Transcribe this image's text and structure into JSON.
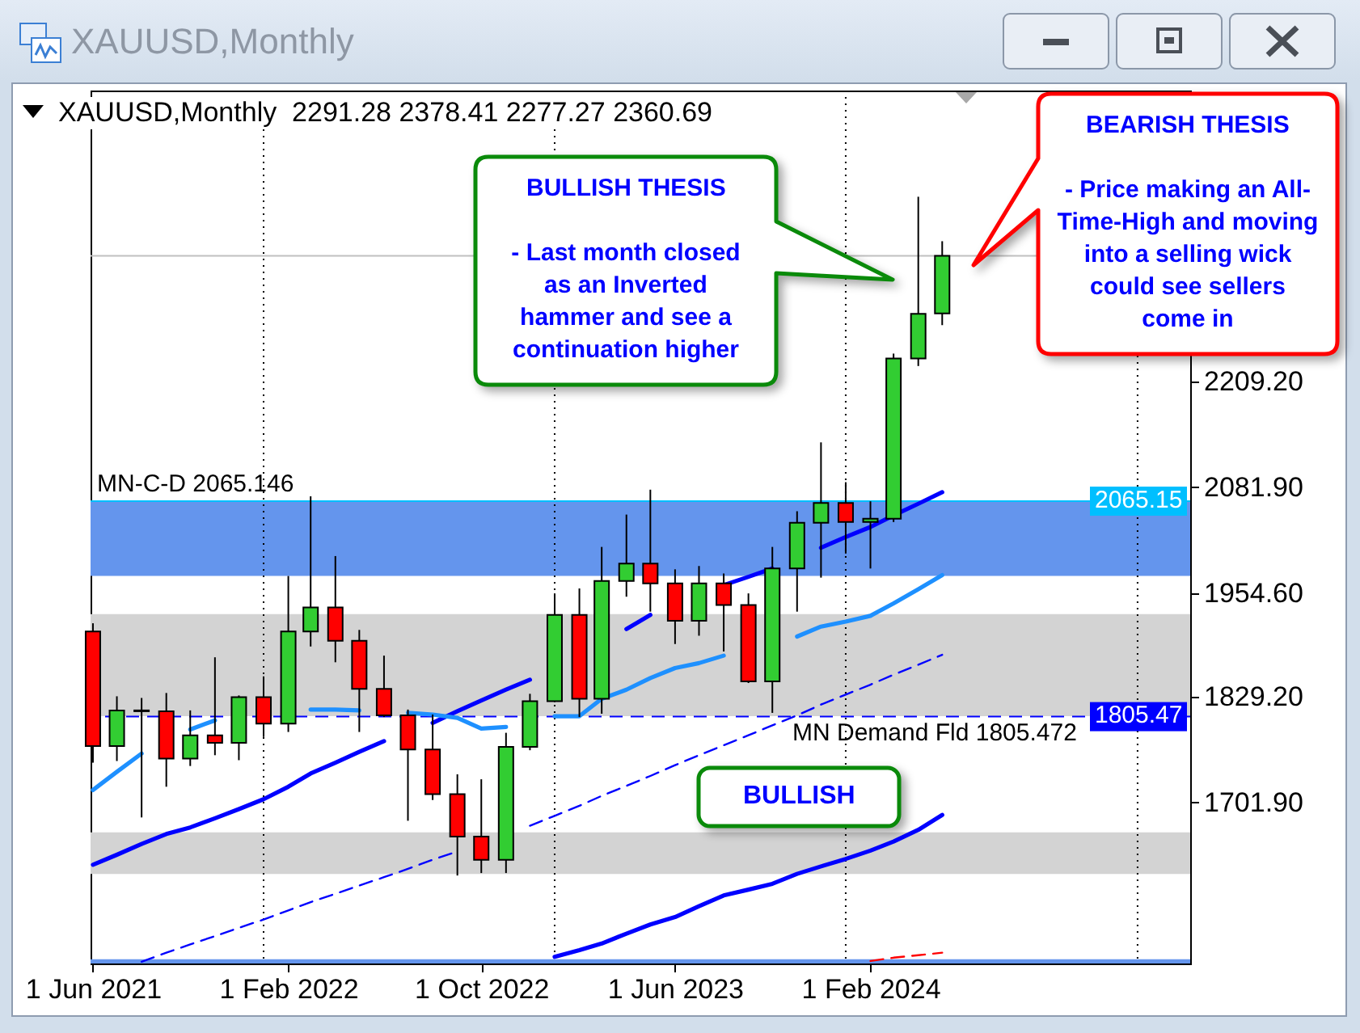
{
  "chart_data": {
    "type": "candlestick",
    "title": "XAUUSD,Monthly",
    "subtitle": "XAUUSD,Monthly  2291.28 2378.41 2277.27 2360.69",
    "x": [
      "2021-06",
      "2021-07",
      "2021-08",
      "2021-09",
      "2021-10",
      "2021-11",
      "2021-12",
      "2022-01",
      "2022-02",
      "2022-03",
      "2022-04",
      "2022-05",
      "2022-06",
      "2022-07",
      "2022-08",
      "2022-09",
      "2022-10",
      "2022-11",
      "2022-12",
      "2023-01",
      "2023-02",
      "2023-03",
      "2023-04",
      "2023-05",
      "2023-06",
      "2023-07",
      "2023-08",
      "2023-09",
      "2023-10",
      "2023-11",
      "2023-12",
      "2024-01",
      "2024-02",
      "2024-03",
      "2024-04",
      "2024-05"
    ],
    "ohlc": [
      [
        1908,
        1918,
        1750,
        1770
      ],
      [
        1770,
        1830,
        1752,
        1813
      ],
      [
        1813,
        1828,
        1684,
        1812
      ],
      [
        1812,
        1834,
        1721,
        1755
      ],
      [
        1755,
        1813,
        1746,
        1783
      ],
      [
        1783,
        1877,
        1759,
        1774
      ],
      [
        1774,
        1831,
        1753,
        1829
      ],
      [
        1829,
        1854,
        1781,
        1797
      ],
      [
        1797,
        1975,
        1787,
        1908
      ],
      [
        1908,
        2071,
        1890,
        1937
      ],
      [
        1937,
        1999,
        1871,
        1897
      ],
      [
        1897,
        1910,
        1787,
        1839
      ],
      [
        1839,
        1879,
        1805,
        1807
      ],
      [
        1807,
        1814,
        1680,
        1766
      ],
      [
        1766,
        1808,
        1705,
        1712
      ],
      [
        1712,
        1736,
        1614,
        1661
      ],
      [
        1661,
        1730,
        1617,
        1633
      ],
      [
        1633,
        1786,
        1617,
        1769
      ],
      [
        1769,
        1833,
        1765,
        1824
      ],
      [
        1824,
        1954,
        1823,
        1928
      ],
      [
        1928,
        1960,
        1805,
        1827
      ],
      [
        1827,
        2010,
        1809,
        1969
      ],
      [
        1969,
        2049,
        1950,
        1990
      ],
      [
        1990,
        2079,
        1932,
        1966
      ],
      [
        1966,
        1983,
        1893,
        1921
      ],
      [
        1921,
        1987,
        1903,
        1966
      ],
      [
        1966,
        1978,
        1884,
        1940
      ],
      [
        1940,
        1954,
        1846,
        1848
      ],
      [
        1848,
        2010,
        1810,
        1984
      ],
      [
        1984,
        2053,
        1932,
        2039
      ],
      [
        2039,
        2136,
        1973,
        2063
      ],
      [
        2063,
        2088,
        2002,
        2040
      ],
      [
        2040,
        2065,
        1984,
        2044
      ],
      [
        2044,
        2243,
        2040,
        2237
      ],
      [
        2237,
        2432,
        2228,
        2291
      ],
      [
        2291.28,
        2378.41,
        2277.27,
        2360.69
      ]
    ],
    "colors": [
      "#ff0000",
      "#32cd32",
      "#ff0000",
      "#ff0000",
      "#32cd32",
      "#ff0000",
      "#32cd32",
      "#ff0000",
      "#32cd32",
      "#32cd32",
      "#ff0000",
      "#ff0000",
      "#ff0000",
      "#ff0000",
      "#ff0000",
      "#ff0000",
      "#ff0000",
      "#32cd32",
      "#32cd32",
      "#32cd32",
      "#ff0000",
      "#32cd32",
      "#32cd32",
      "#ff0000",
      "#ff0000",
      "#32cd32",
      "#ff0000",
      "#ff0000",
      "#32cd32",
      "#32cd32",
      "#32cd32",
      "#ff0000",
      "#32cd32",
      "#32cd32",
      "#32cd32",
      "#32cd32"
    ],
    "series": [
      {
        "type": "line",
        "color": "#0000ff",
        "line_style": "solid",
        "values": [
          1627,
          1639,
          1652,
          1664,
          1672,
          1683,
          1694,
          1706,
          1721,
          1737,
          1750,
          1763,
          1776,
          null,
          1798,
          1812,
          1825,
          1838,
          1850,
          null,
          null,
          null,
          1911,
          1928,
          null,
          null,
          1964,
          1974,
          1984,
          null,
          2009,
          2022,
          2034,
          2048,
          2062,
          2076
        ]
      },
      {
        "type": "line",
        "color": "#1e90ff",
        "line_style": "solid",
        "values": [
          1717,
          1739,
          1761,
          null,
          1790,
          1801,
          null,
          null,
          null,
          1814,
          1814,
          1813,
          null,
          1810,
          1808,
          1804,
          1791,
          1793,
          null,
          1806,
          1806,
          1827,
          1838,
          1852,
          1864,
          1870,
          1879,
          null,
          null,
          1902,
          1914,
          1920,
          1927,
          1942,
          1959,
          1976
        ]
      },
      {
        "type": "line",
        "color": "#0000ff",
        "line_style": "dashed",
        "values": [
          null,
          null,
          1510,
          1521,
          1531,
          1541,
          1551,
          1561,
          1572,
          1582,
          1592,
          1602,
          1612,
          1622,
          1633,
          1643,
          null,
          null,
          1674,
          1686,
          1698,
          1710,
          1722,
          1734,
          1747,
          1759,
          1771,
          1783,
          1795,
          1807,
          1820,
          1832,
          1844,
          1856,
          1868,
          1880
        ]
      },
      {
        "type": "line",
        "color": "#0000ff",
        "line_style": "solid",
        "values": [
          null,
          null,
          null,
          null,
          null,
          null,
          null,
          null,
          null,
          null,
          null,
          null,
          null,
          null,
          null,
          null,
          null,
          null,
          null,
          1516,
          1524,
          1532,
          1544,
          1555,
          1564,
          1577,
          1590,
          1597,
          1604,
          1616,
          1625,
          1634,
          1644,
          1655,
          1669,
          1687
        ]
      },
      {
        "type": "line",
        "color": "#ff0000",
        "line_style": "dashed",
        "values": [
          null,
          null,
          null,
          null,
          null,
          null,
          null,
          null,
          null,
          null,
          null,
          null,
          null,
          null,
          null,
          null,
          null,
          null,
          null,
          null,
          null,
          null,
          null,
          null,
          null,
          null,
          null,
          null,
          null,
          null,
          null,
          null,
          1511,
          1515,
          1518,
          1521
        ]
      }
    ],
    "xlim": [
      "2021-05-29",
      "2025-03-08"
    ],
    "xticks": [
      {
        "value": "2021-06",
        "label": "1 Jun 2021"
      },
      {
        "value": "2022-02",
        "label": "1 Feb 2022"
      },
      {
        "value": "2022-10",
        "label": "1 Oct 2022"
      },
      {
        "value": "2023-06",
        "label": "1 Jun 2023"
      },
      {
        "value": "2024-02",
        "label": "1 Feb 2024"
      }
    ],
    "ylim": [
      1508,
      2560
    ],
    "yticks": [
      {
        "value": 2209.2,
        "label": "2209.20"
      },
      {
        "value": 2081.9,
        "label": "2081.90"
      },
      {
        "value": 1954.6,
        "label": "1954.60"
      },
      {
        "value": 1829.2,
        "label": "1829.20"
      },
      {
        "value": 1701.9,
        "label": "1701.90"
      }
    ],
    "ref_lines": [
      {
        "axis": "y",
        "value": 2065.146,
        "label": "MN-C-D 2065.146",
        "color": "#00bfff",
        "line_style": "solid"
      },
      {
        "axis": "y",
        "value": 1805.472,
        "label": "MN Demand Fld 1805.472",
        "color": "#0000ff",
        "line_style": "dashed"
      },
      {
        "axis": "y",
        "value": 2360.69,
        "color": "#c0c0c0",
        "line_style": "solid"
      },
      {
        "axis": "x",
        "value": "2022-01",
        "color": "#000000",
        "line_style": "dotted"
      },
      {
        "axis": "x",
        "value": "2023-01",
        "color": "#000000",
        "line_style": "dotted"
      },
      {
        "axis": "x",
        "value": "2024-01",
        "color": "#000000",
        "line_style": "dotted"
      },
      {
        "axis": "x",
        "value": "2025-01",
        "color": "#000000",
        "line_style": "dotted"
      }
    ],
    "bands": [
      {
        "axis": "y",
        "from": 1508,
        "to": 1513,
        "color": "#6495ed"
      },
      {
        "axis": "y",
        "from": 1616,
        "to": 1666,
        "color": "#d3d3d3"
      },
      {
        "axis": "y",
        "from": 1806,
        "to": 1929,
        "color": "#d3d3d3"
      },
      {
        "axis": "y",
        "from": 1975,
        "to": 2065,
        "color": "#6495ed"
      }
    ],
    "annotations": [
      "BULLISH THESIS",
      "- Last month closed as an Inverted hammer and see a continuation higher",
      "BEARISH THESIS",
      "- Price making an All-Time-High and moving into a selling wick could see sellers come in",
      "BULLISH",
      {
        "text": "2065.15",
        "y": 2065.146
      },
      {
        "text": "1805.47",
        "y": 1805.472
      }
    ]
  }
}
